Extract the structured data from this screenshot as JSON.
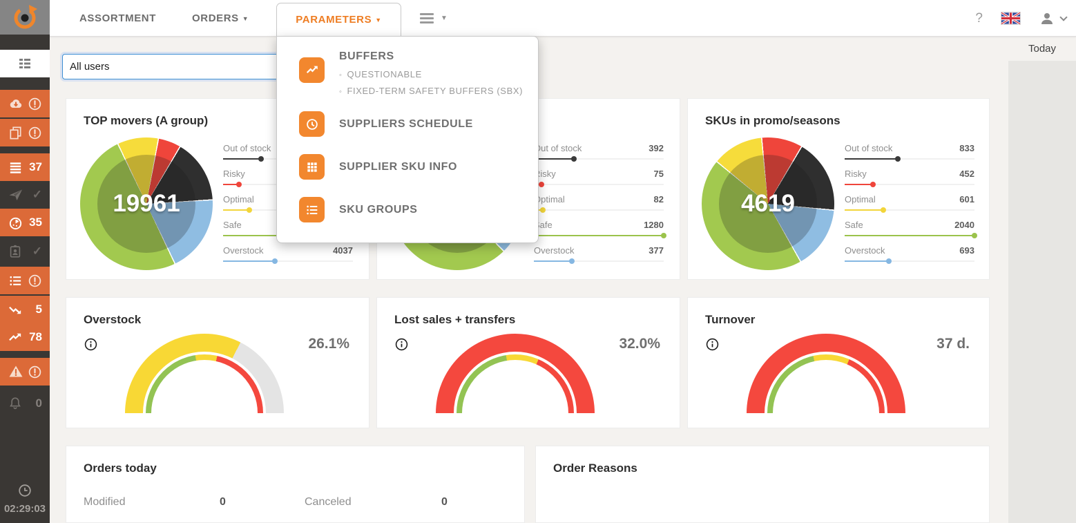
{
  "nav": {
    "caret": "▼",
    "items": [
      {
        "label": "ASSORTMENT"
      },
      {
        "label": "ORDERS"
      },
      {
        "label": "PARAMETERS"
      }
    ],
    "help": "?"
  },
  "dropdown": {
    "bullet": "◦",
    "sections": [
      {
        "icon": "trend-up",
        "title": "BUFFERS",
        "subitems": [
          "QUESTIONABLE",
          "FIXED-TERM SAFETY BUFFERS (SBX)"
        ]
      },
      {
        "icon": "clock",
        "title": "SUPPLIERS SCHEDULE",
        "subitems": []
      },
      {
        "icon": "grid",
        "title": "SUPPLIER SKU INFO",
        "subitems": []
      },
      {
        "icon": "list",
        "title": "SKU GROUPS",
        "subitems": []
      }
    ]
  },
  "sidebar": {
    "check": "✓",
    "badges": {
      "orders_queue": "37",
      "timer": "35",
      "trend_down": "5",
      "trend_up": "78",
      "notifications": "0"
    },
    "time": "02:29:03"
  },
  "filter": {
    "value": "All users"
  },
  "right_panel": {
    "label": "Today"
  },
  "cards": {
    "top_movers": {
      "title": "TOP movers (A group)",
      "total": "19961",
      "pie": {
        "start": -26,
        "slices": [
          {
            "name": "Optimal",
            "color": "#f6dc3b",
            "span": 36
          },
          {
            "name": "Risky",
            "color": "#ef453b",
            "span": 20
          },
          {
            "name": "Out of stock",
            "color": "#2f2f2f",
            "span": 56
          },
          {
            "name": "Overstock",
            "color": "#8fbde2",
            "span": 68
          },
          {
            "name": "Safe",
            "color": "#a2c94f",
            "span": 180
          }
        ]
      },
      "legend": [
        {
          "label": "Out of stock",
          "value": "",
          "color": "#3a3a3a",
          "pct": 29
        },
        {
          "label": "Risky",
          "value": "",
          "color": "#ef453b",
          "pct": 12
        },
        {
          "label": "Optimal",
          "value": "",
          "color": "#f2d53a",
          "pct": 20
        },
        {
          "label": "Safe",
          "value": "",
          "color": "#9bc34c",
          "pct": 100
        },
        {
          "label": "Overstock",
          "value": "4037",
          "color": "#85b7e2",
          "pct": 40
        }
      ]
    },
    "hidden_card": {
      "title": "",
      "total": "",
      "pie": {
        "start": -15,
        "slices": [
          {
            "name": "Optimal",
            "color": "#f6dc3b",
            "span": 13
          },
          {
            "name": "Risky",
            "color": "#ef453b",
            "span": 12
          },
          {
            "name": "Out of stock",
            "color": "#2f2f2f",
            "span": 64
          },
          {
            "name": "Overstock",
            "color": "#8fbde2",
            "span": 61
          },
          {
            "name": "Safe",
            "color": "#a2c94f",
            "span": 210
          }
        ]
      },
      "legend": [
        {
          "label": "Out of stock",
          "value": "392",
          "color": "#3a3a3a",
          "pct": 31
        },
        {
          "label": "Risky",
          "value": "75",
          "color": "#ef453b",
          "pct": 6
        },
        {
          "label": "Optimal",
          "value": "82",
          "color": "#f2d53a",
          "pct": 7
        },
        {
          "label": "Safe",
          "value": "1280",
          "color": "#9bc34c",
          "pct": 100
        },
        {
          "label": "Overstock",
          "value": "377",
          "color": "#85b7e2",
          "pct": 29
        }
      ]
    },
    "promo": {
      "title": "SKUs in promo/seasons",
      "total": "4619",
      "pie": {
        "start": -6,
        "slices": [
          {
            "name": "Risky",
            "color": "#ef453b",
            "span": 36
          },
          {
            "name": "Out of stock",
            "color": "#2f2f2f",
            "span": 65
          },
          {
            "name": "Overstock",
            "color": "#8fbde2",
            "span": 55
          },
          {
            "name": "Safe",
            "color": "#a2c94f",
            "span": 159
          },
          {
            "name": "Optimal",
            "color": "#f6dc3b",
            "span": 45
          }
        ]
      },
      "legend": [
        {
          "label": "Out of stock",
          "value": "833",
          "color": "#3a3a3a",
          "pct": 41
        },
        {
          "label": "Risky",
          "value": "452",
          "color": "#ef453b",
          "pct": 22
        },
        {
          "label": "Optimal",
          "value": "601",
          "color": "#f2d53a",
          "pct": 30
        },
        {
          "label": "Safe",
          "value": "2040",
          "color": "#9bc34c",
          "pct": 100
        },
        {
          "label": "Overstock",
          "value": "693",
          "color": "#85b7e2",
          "pct": 34
        }
      ]
    },
    "overstock_gauge": {
      "title": "Overstock",
      "value": "26.1%",
      "outer": [
        {
          "color": "#f8d835",
          "pct": 65
        },
        {
          "color": "#e4e4e4",
          "pct": 35
        }
      ],
      "zones": [
        {
          "color": "#93c353",
          "pct": 45
        },
        {
          "color": "#f8d835",
          "pct": 12
        },
        {
          "color": "#f4483e",
          "pct": 43
        }
      ]
    },
    "lost_sales_gauge": {
      "title": "Lost sales + transfers",
      "value": "32.0%",
      "outer": [
        {
          "color": "#f4483e",
          "pct": 100
        }
      ],
      "zones": [
        {
          "color": "#93c353",
          "pct": 45
        },
        {
          "color": "#f8d835",
          "pct": 18
        },
        {
          "color": "#f4483e",
          "pct": 37
        }
      ]
    },
    "turnover_gauge": {
      "title": "Turnover",
      "value": "37 d.",
      "outer": [
        {
          "color": "#f4483e",
          "pct": 100
        }
      ],
      "zones": [
        {
          "color": "#93c353",
          "pct": 43
        },
        {
          "color": "#f8d835",
          "pct": 20
        },
        {
          "color": "#f4483e",
          "pct": 37
        }
      ]
    },
    "orders_today": {
      "title": "Orders today",
      "stats": [
        {
          "label": "Modified",
          "value": "0"
        },
        {
          "label": "Canceled",
          "value": "0"
        }
      ]
    },
    "order_reasons": {
      "title": "Order Reasons"
    }
  }
}
